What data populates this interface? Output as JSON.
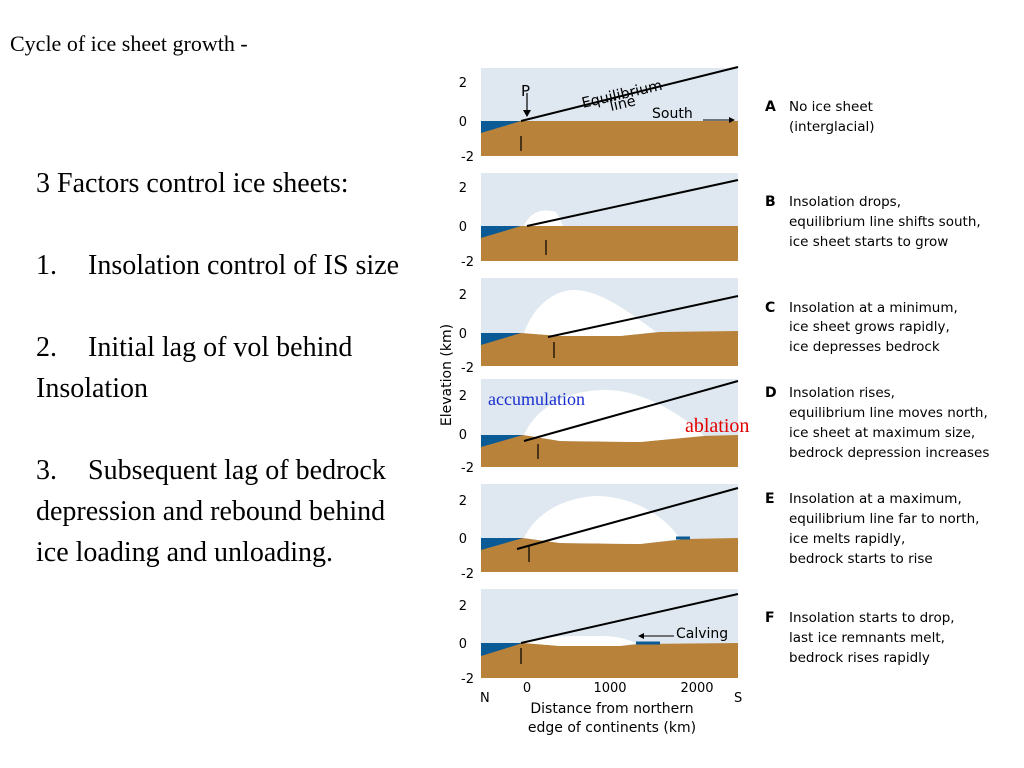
{
  "title": "Cycle of ice sheet growth -",
  "factors": {
    "heading": "3 Factors control ice sheets:",
    "items": [
      {
        "num": "1.",
        "lines": [
          "Insolation control of IS size"
        ]
      },
      {
        "num": "2.",
        "lines": [
          "Initial lag of vol behind",
          "Insolation"
        ]
      },
      {
        "num": "3.",
        "lines": [
          "Subsequent lag of bedrock",
          "depression and rebound behind",
          "ice loading and unloading."
        ]
      }
    ]
  },
  "diagram": {
    "y_axis_label": "Elevation (km)",
    "y_ticks": [
      "2",
      "0",
      "-2"
    ],
    "x_ticks": [
      "0",
      "1000",
      "2000"
    ],
    "x_left": "N",
    "x_right": "S",
    "x_axis_label": [
      "Distance from northern",
      "edge of continents (km)"
    ],
    "labels": {
      "p": "P",
      "equilibrium_line": [
        "Equilibrium",
        "line"
      ],
      "south": "South",
      "calving": "Calving",
      "accumulation": "accumulation",
      "ablation": "ablation"
    },
    "colors": {
      "ocean": "#0a5a96",
      "bedrock": "#b8823a",
      "sky": "#dfe8f0",
      "ice": "#ffffff",
      "accumulation_text": "#1a2fd0",
      "ablation_text": "#e00000"
    },
    "panels": [
      {
        "letter": "A",
        "caption": [
          "No ice sheet",
          "(interglacial)"
        ]
      },
      {
        "letter": "B",
        "caption": [
          "Insolation drops,",
          "equilibrium line shifts south,",
          "ice sheet starts to grow"
        ]
      },
      {
        "letter": "C",
        "caption": [
          "Insolation at a minimum,",
          "ice sheet grows rapidly,",
          "ice depresses bedrock"
        ]
      },
      {
        "letter": "D",
        "caption": [
          "Insolation rises,",
          "equilibrium line moves north,",
          "ice sheet at maximum size,",
          "bedrock depression increases"
        ]
      },
      {
        "letter": "E",
        "caption": [
          "Insolation at a maximum,",
          "equilibrium line far to north,",
          "ice melts rapidly,",
          "bedrock starts to rise"
        ]
      },
      {
        "letter": "F",
        "caption": [
          "Insolation starts to drop,",
          "last ice remnants melt,",
          "bedrock rises rapidly"
        ]
      }
    ]
  }
}
